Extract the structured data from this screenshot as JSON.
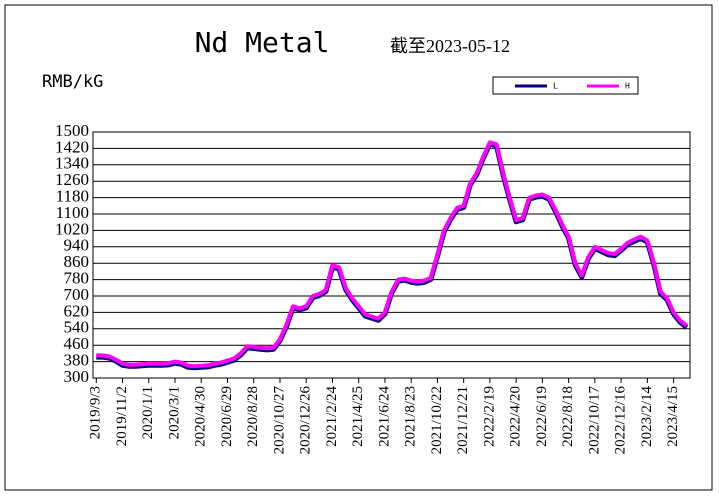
{
  "chart_data": {
    "type": "line",
    "title": "Nd Metal",
    "subtitle": "截至2023-05-12",
    "y_label": "RMB/kG",
    "categories": [
      "2019/9/3",
      null,
      null,
      null,
      "2019/11/2",
      null,
      null,
      null,
      "2020/1/1",
      null,
      null,
      null,
      "2020/3/1",
      null,
      null,
      null,
      "2020/4/30",
      null,
      null,
      null,
      "2020/6/29",
      null,
      null,
      null,
      "2020/8/28",
      null,
      null,
      null,
      "2020/10/27",
      null,
      null,
      null,
      "2020/12/26",
      null,
      null,
      null,
      "2021/2/24",
      null,
      null,
      null,
      "2021/4/25",
      null,
      null,
      null,
      "2021/6/24",
      null,
      null,
      null,
      "2021/8/23",
      null,
      null,
      null,
      "2021/10/22",
      null,
      null,
      null,
      "2021/12/21",
      null,
      null,
      null,
      "2022/2/19",
      null,
      null,
      null,
      "2022/4/20",
      null,
      null,
      null,
      "2022/6/19",
      null,
      null,
      null,
      "2022/8/18",
      null,
      null,
      null,
      "2022/10/17",
      null,
      null,
      null,
      "2022/12/16",
      null,
      null,
      null,
      "2023/2/14",
      null,
      null,
      null,
      "2023/4/15",
      null,
      null
    ],
    "series": [
      {
        "name": "L",
        "color": "#000080",
        "values": [
          402,
          402,
          397,
          382,
          362,
          357,
          357,
          360,
          362,
          362,
          362,
          364,
          372,
          367,
          352,
          350,
          352,
          354,
          362,
          367,
          377,
          387,
          412,
          447,
          444,
          440,
          437,
          440,
          482,
          552,
          642,
          632,
          642,
          692,
          702,
          722,
          842,
          832,
          732,
          682,
          642,
          602,
          592,
          582,
          612,
          712,
          772,
          777,
          767,
          762,
          767,
          782,
          892,
          1012,
          1072,
          1122,
          1132,
          1242,
          1292,
          1372,
          1442,
          1432,
          1292,
          1172,
          1062,
          1072,
          1172,
          1182,
          1187,
          1172,
          1112,
          1042,
          982,
          852,
          792,
          882,
          932,
          917,
          902,
          897,
          922,
          952,
          967,
          982,
          962,
          852,
          712,
          682,
          612,
          572,
          547
        ]
      },
      {
        "name": "H",
        "color": "#ff00ff",
        "values": [
          410,
          410,
          405,
          390,
          370,
          365,
          365,
          368,
          370,
          370,
          370,
          372,
          380,
          375,
          360,
          358,
          360,
          362,
          370,
          375,
          385,
          395,
          420,
          455,
          452,
          448,
          445,
          448,
          490,
          560,
          650,
          640,
          650,
          700,
          710,
          730,
          850,
          840,
          740,
          690,
          650,
          610,
          600,
          590,
          620,
          720,
          780,
          785,
          775,
          770,
          775,
          790,
          900,
          1020,
          1080,
          1130,
          1140,
          1250,
          1300,
          1380,
          1450,
          1440,
          1300,
          1180,
          1070,
          1080,
          1180,
          1190,
          1195,
          1180,
          1120,
          1050,
          990,
          860,
          800,
          890,
          940,
          925,
          910,
          905,
          930,
          960,
          975,
          990,
          970,
          860,
          720,
          690,
          620,
          580,
          555
        ]
      }
    ],
    "ylim": [
      300,
      1500
    ],
    "yticks": [
      300,
      380,
      460,
      540,
      620,
      700,
      780,
      860,
      940,
      1020,
      1100,
      1180,
      1260,
      1340,
      1420,
      1500
    ],
    "grid": true
  }
}
